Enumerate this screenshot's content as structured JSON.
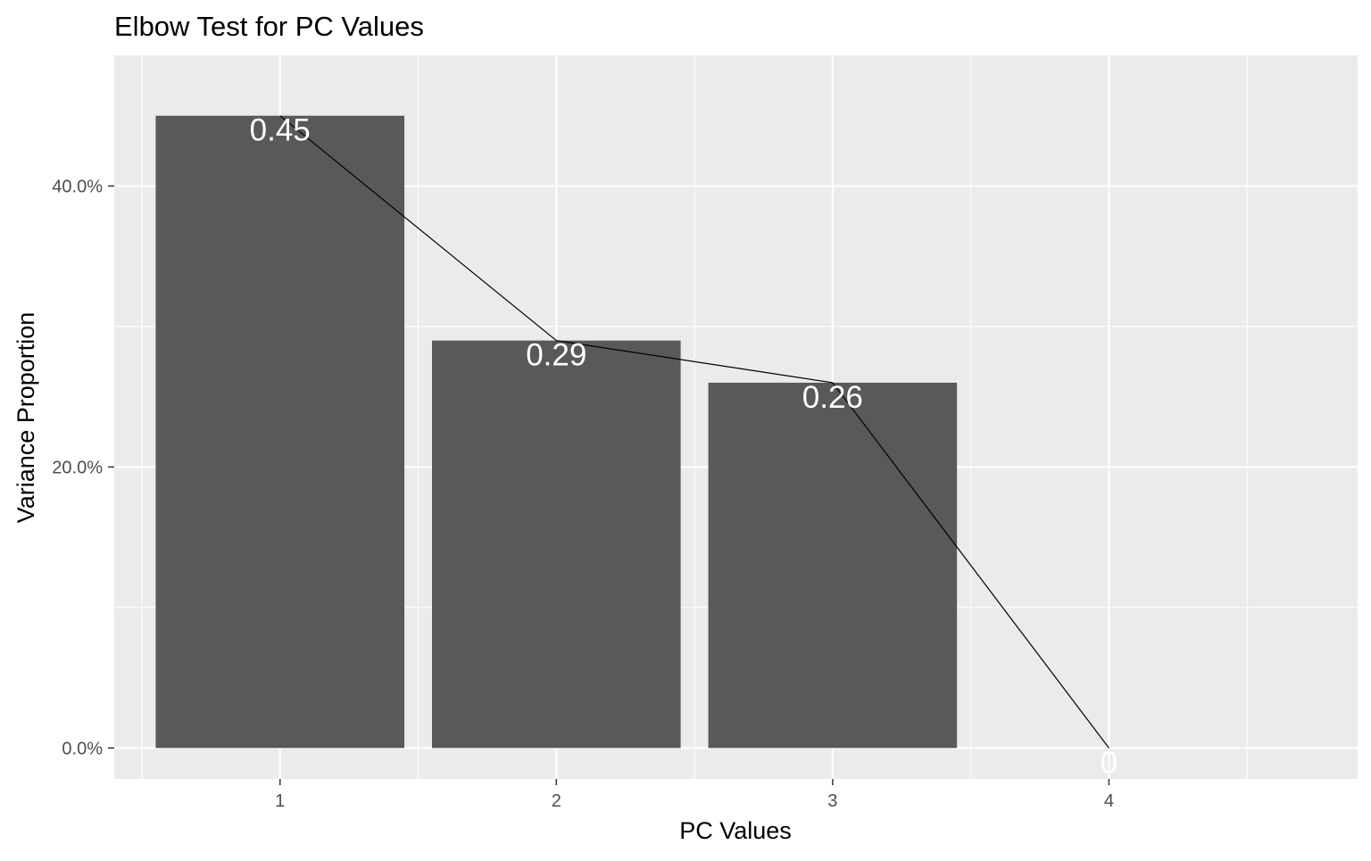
{
  "chart_data": {
    "type": "bar",
    "title": "Elbow Test for PC Values",
    "xlabel": "PC Values",
    "ylabel": "Variance Proportion",
    "categories": [
      "1",
      "2",
      "3",
      "4"
    ],
    "values": [
      0.45,
      0.29,
      0.26,
      0
    ],
    "data_labels": [
      "0.45",
      "0.29",
      "0.26",
      "0"
    ],
    "line_overlay": true,
    "ylim": [
      -0.022,
      0.493
    ],
    "y_ticks": [
      0,
      0.2,
      0.4
    ],
    "y_tick_labels": [
      "0.0%",
      "20.0%",
      "40.0%"
    ],
    "grid": true,
    "colors": {
      "panel": "#EBEBEB",
      "bar": "#595959",
      "grid": "#FFFFFF",
      "line": "#000000",
      "data_label": "#FFFFFF",
      "axis_text": "#4D4D4D",
      "title_text": "#000000"
    }
  }
}
